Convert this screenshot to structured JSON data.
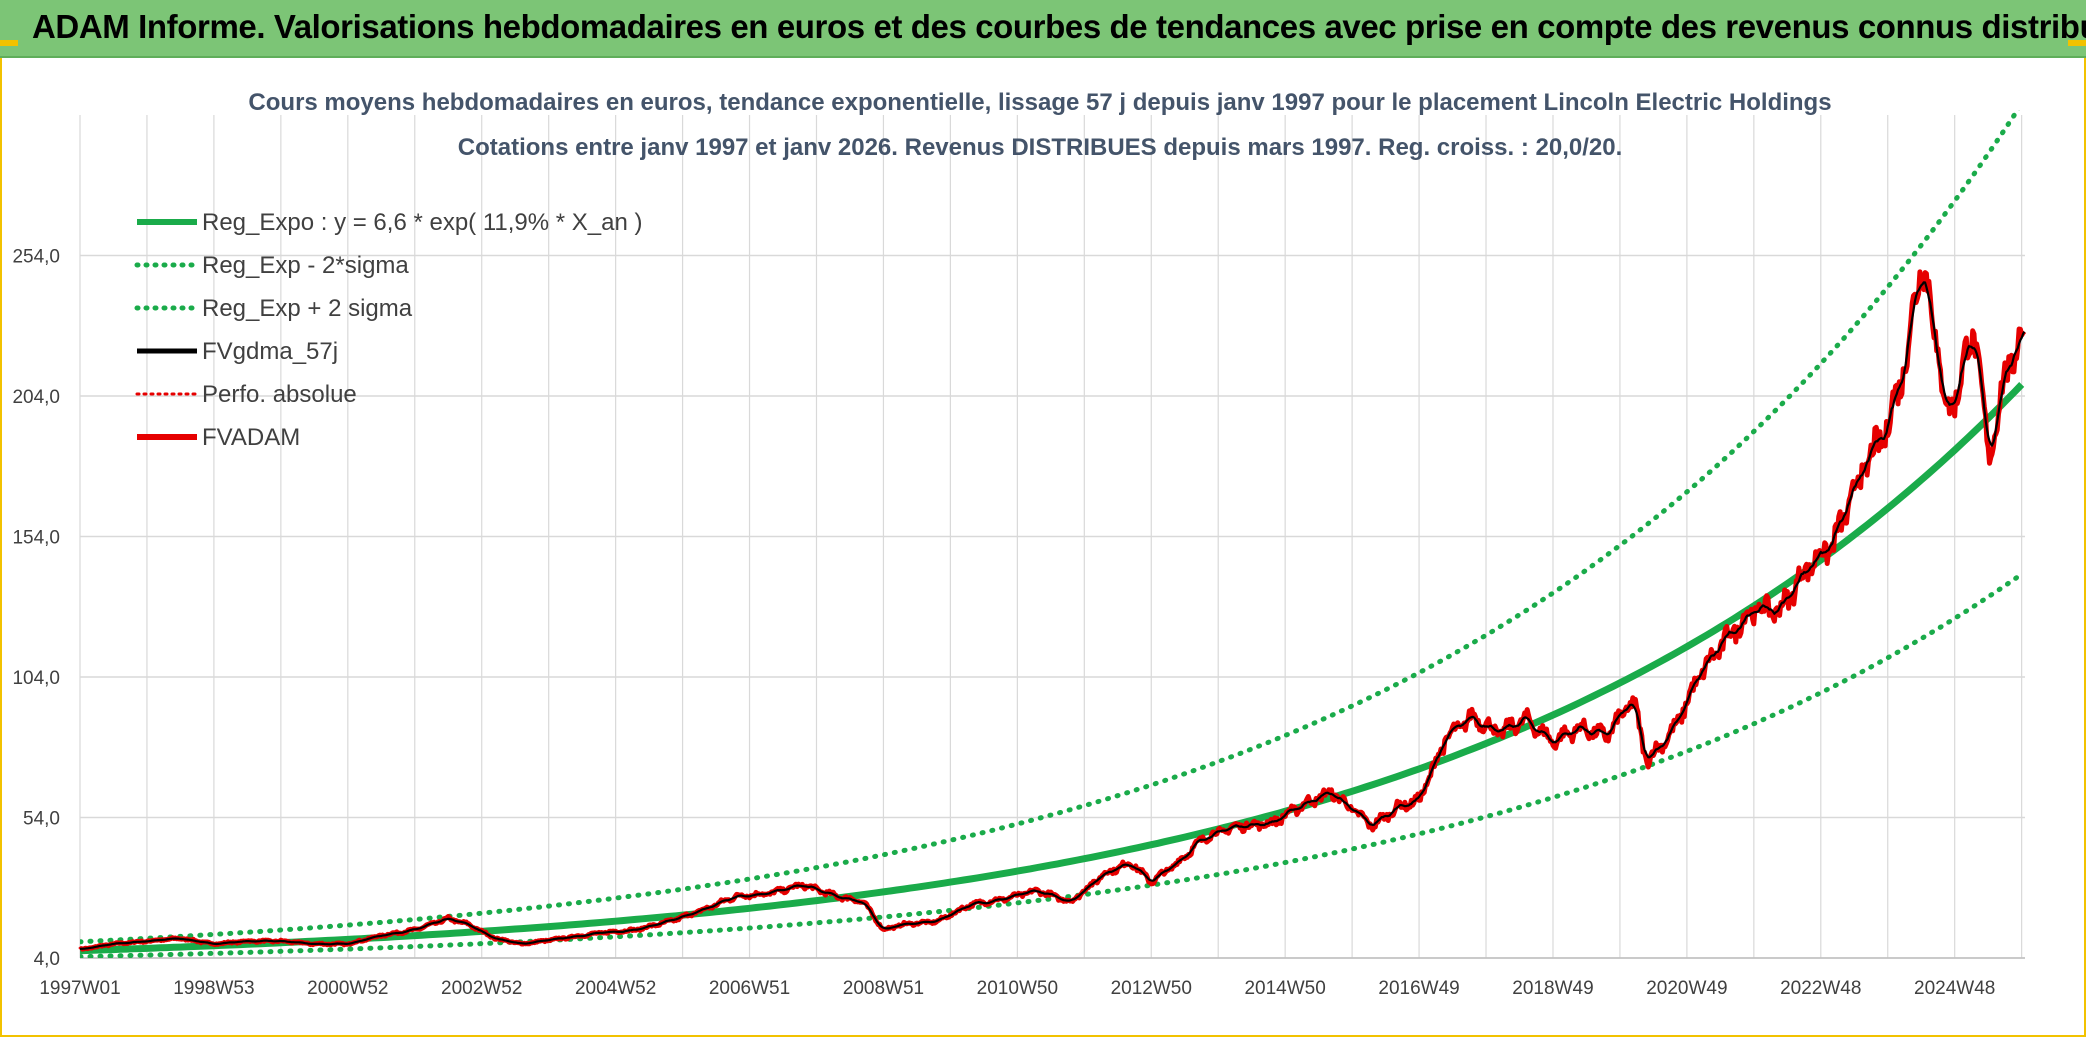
{
  "banner": {
    "title": "ADAM Informe. Valorisations hebdomadaires en euros et des courbes de tendances avec prise en compte des revenus connus distribués"
  },
  "colors": {
    "banner_bg": "#7cc576",
    "frame_border": "#f2c200",
    "reg_expo": "#1aab4a",
    "band": "#1aab4a",
    "gdma": "#000000",
    "fvadam": "#e60000",
    "perfo": "#e60000",
    "grid": "#d9d9d9",
    "title_text": "#44546a"
  },
  "chart_data": {
    "type": "line",
    "title": "Cours moyens hebdomadaires en euros, tendance exponentielle, lissage 57 j depuis janv 1997 pour le placement Lincoln Electric Holdings",
    "subtitle": "Cotations entre janv 1997 et janv 2026. Revenus DISTRIBUES depuis mars 1997. Reg. croiss. : 20,0/20.",
    "xlabel": "",
    "ylabel": "",
    "x_ticks": [
      "1997W01",
      "1998W53",
      "2000W52",
      "2002W52",
      "2004W52",
      "2006W51",
      "2008W51",
      "2010W50",
      "2012W50",
      "2014W50",
      "2016W49",
      "2018W49",
      "2020W49",
      "2022W48",
      "2024W48"
    ],
    "x_tick_years": [
      1997.0,
      1999.0,
      2001.0,
      2003.0,
      2005.0,
      2007.0,
      2009.0,
      2011.0,
      2013.0,
      2015.0,
      2017.0,
      2019.0,
      2021.0,
      2023.0,
      2025.0
    ],
    "x_range": [
      1997.0,
      2026.05
    ],
    "y_ticks": [
      "4,0",
      "54,0",
      "104,0",
      "154,0",
      "204,0",
      "254,0"
    ],
    "y_tick_values": [
      4,
      54,
      104,
      154,
      204,
      254
    ],
    "ylim": [
      4,
      304
    ],
    "grid": true,
    "legend_position": "top-left",
    "regression": {
      "a": 6.6,
      "rate": 0.119,
      "sigma_factor": 1.48
    },
    "series": [
      {
        "name": "Reg_Expo : y = 6,6 * exp( 11,9% *  X_an )",
        "style": "solid",
        "kind": "reg"
      },
      {
        "name": "Reg_Exp - 2*sigma",
        "style": "dotted",
        "kind": "reg_low"
      },
      {
        "name": "Reg_Exp + 2 sigma",
        "style": "dotted",
        "kind": "reg_high"
      },
      {
        "name": "FVgdma_57j",
        "style": "solid",
        "kind": "gdma"
      },
      {
        "name": "Perfo. absolue",
        "style": "dotted",
        "kind": "perfo"
      },
      {
        "name": "FVADAM",
        "style": "solid",
        "kind": "fvadam"
      }
    ],
    "fvadam_points": [
      [
        1997.0,
        7
      ],
      [
        1997.5,
        9
      ],
      [
        1998.0,
        10
      ],
      [
        1998.5,
        11
      ],
      [
        1999.0,
        9
      ],
      [
        1999.5,
        10
      ],
      [
        2000.0,
        10
      ],
      [
        2000.5,
        9
      ],
      [
        2001.0,
        9
      ],
      [
        2001.5,
        12
      ],
      [
        2002.0,
        14
      ],
      [
        2002.5,
        18
      ],
      [
        2002.8,
        16
      ],
      [
        2003.2,
        11
      ],
      [
        2003.6,
        9
      ],
      [
        2004.2,
        11
      ],
      [
        2004.8,
        13
      ],
      [
        2005.3,
        14
      ],
      [
        2005.8,
        17
      ],
      [
        2006.3,
        21
      ],
      [
        2006.8,
        26
      ],
      [
        2007.3,
        27
      ],
      [
        2007.8,
        30
      ],
      [
        2008.3,
        26
      ],
      [
        2008.7,
        24
      ],
      [
        2009.0,
        14
      ],
      [
        2009.3,
        16
      ],
      [
        2009.8,
        17
      ],
      [
        2010.3,
        23
      ],
      [
        2010.8,
        25
      ],
      [
        2011.3,
        28
      ],
      [
        2011.8,
        24
      ],
      [
        2012.3,
        34
      ],
      [
        2012.7,
        38
      ],
      [
        2013.0,
        31
      ],
      [
        2013.4,
        38
      ],
      [
        2013.8,
        47
      ],
      [
        2014.3,
        51
      ],
      [
        2014.8,
        52
      ],
      [
        2015.3,
        59
      ],
      [
        2015.7,
        63
      ],
      [
        2016.0,
        57
      ],
      [
        2016.3,
        51
      ],
      [
        2016.7,
        58
      ],
      [
        2017.0,
        60
      ],
      [
        2017.4,
        82
      ],
      [
        2017.8,
        90
      ],
      [
        2018.2,
        84
      ],
      [
        2018.6,
        89
      ],
      [
        2019.0,
        81
      ],
      [
        2019.4,
        86
      ],
      [
        2019.8,
        83
      ],
      [
        2020.2,
        96
      ],
      [
        2020.4,
        74
      ],
      [
        2020.8,
        85
      ],
      [
        2021.2,
        105
      ],
      [
        2021.6,
        118
      ],
      [
        2022.0,
        128
      ],
      [
        2022.4,
        128
      ],
      [
        2022.8,
        143
      ],
      [
        2023.2,
        152
      ],
      [
        2023.6,
        176
      ],
      [
        2024.0,
        193
      ],
      [
        2024.3,
        220
      ],
      [
        2024.5,
        254
      ],
      [
        2024.7,
        228
      ],
      [
        2024.9,
        196
      ],
      [
        2025.1,
        212
      ],
      [
        2025.3,
        228
      ],
      [
        2025.5,
        182
      ],
      [
        2025.8,
        215
      ],
      [
        2025.95,
        222
      ],
      [
        2026.05,
        228
      ]
    ]
  }
}
